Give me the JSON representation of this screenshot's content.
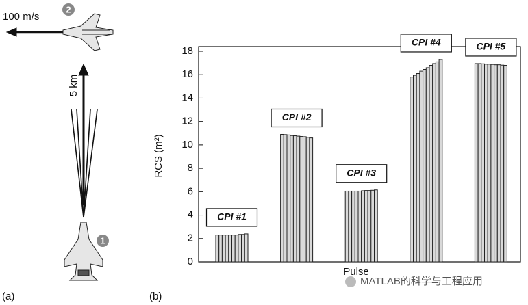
{
  "panel_labels": [
    "(a)",
    "(b)"
  ],
  "diagram": {
    "speed": "100 m/s",
    "distance": "5 km",
    "markers": [
      "1",
      "2"
    ]
  },
  "watermark": "MATLAB的科学与工程应用",
  "chart_data": {
    "type": "bar",
    "xlabel": "Pulse",
    "ylabel": "RCS (m²)",
    "ylim": [
      0,
      18
    ],
    "yticks": [
      0,
      2,
      4,
      6,
      8,
      10,
      12,
      14,
      16,
      18
    ],
    "color": "#d9d9d9",
    "groups": [
      {
        "label": "CPI #1",
        "values": [
          2.3,
          2.3,
          2.3,
          2.3,
          2.3,
          2.3,
          2.3,
          2.35,
          2.35,
          2.4
        ]
      },
      {
        "label": "CPI #2",
        "values": [
          10.9,
          10.88,
          10.85,
          10.8,
          10.78,
          10.75,
          10.72,
          10.7,
          10.65,
          10.6
        ]
      },
      {
        "label": "CPI #3",
        "values": [
          6.05,
          6.05,
          6.05,
          6.05,
          6.05,
          6.08,
          6.1,
          6.1,
          6.12,
          6.15
        ]
      },
      {
        "label": "CPI #4",
        "values": [
          15.8,
          15.95,
          16.1,
          16.3,
          16.45,
          16.6,
          16.8,
          16.95,
          17.1,
          17.3
        ]
      },
      {
        "label": "CPI #5",
        "values": [
          16.95,
          16.95,
          16.93,
          16.9,
          16.9,
          16.88,
          16.85,
          16.85,
          16.82,
          16.8
        ]
      }
    ]
  }
}
